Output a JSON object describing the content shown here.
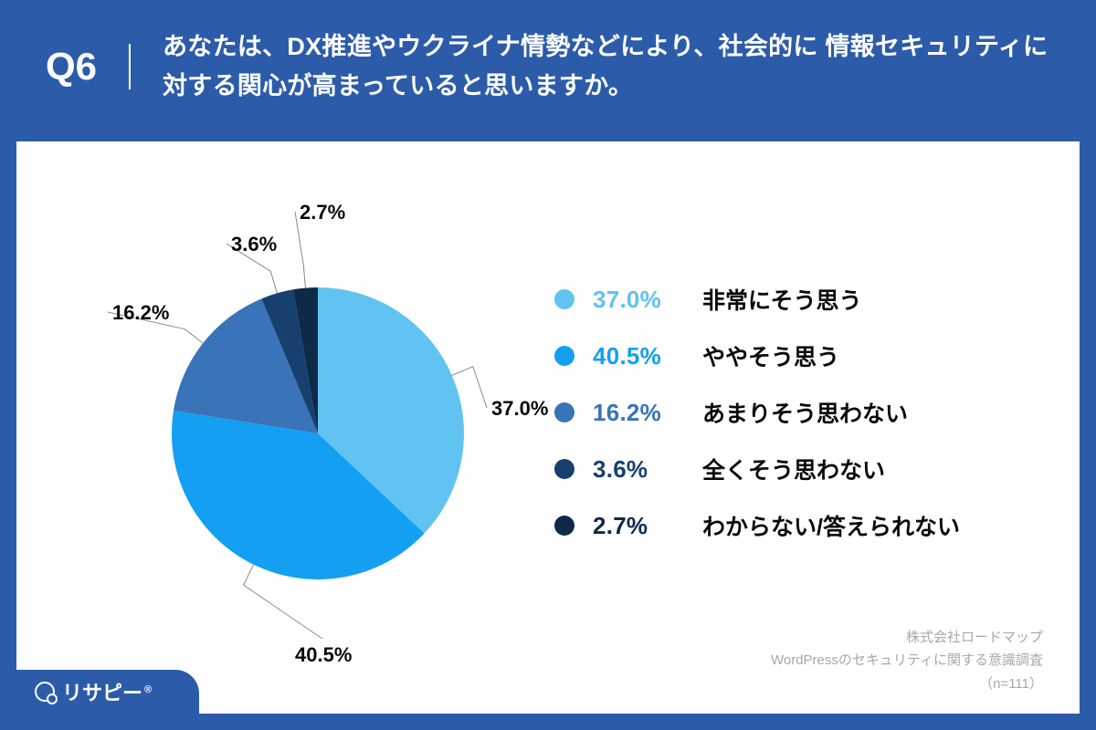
{
  "header": {
    "question_number": "Q6",
    "question_text": "あなたは、DX推進やウクライナ情勢などにより、社会的に\n情報セキュリティに対する関心が高まっていると思いますか。",
    "bg_color": "#2c5ca9",
    "text_color": "#ffffff",
    "qnum_fontsize": 42,
    "qtext_fontsize": 27
  },
  "chart": {
    "type": "pie",
    "background_color": "#ffffff",
    "slices": [
      {
        "label": "非常にそう思う",
        "value": 37.0,
        "pct_text": "37.0%",
        "color": "#61c3f2",
        "pct_color": "#61c3f2"
      },
      {
        "label": "ややそう思う",
        "value": 40.5,
        "pct_text": "40.5%",
        "color": "#149ff2",
        "pct_color": "#149ff2"
      },
      {
        "label": "あまりそう思わない",
        "value": 16.2,
        "pct_text": "16.2%",
        "color": "#3973b8",
        "pct_color": "#3973b8"
      },
      {
        "label": "全くそう思わない",
        "value": 3.6,
        "pct_text": "3.6%",
        "color": "#17406e",
        "pct_color": "#17406e"
      },
      {
        "label": "わからない/答えられない",
        "value": 2.7,
        "pct_text": "2.7%",
        "color": "#0f2a49",
        "pct_color": "#0f2a49"
      }
    ],
    "callout_fontsize": 22,
    "callout_color": "#0a0a0a",
    "callout_line_color": "#888888"
  },
  "legend": {
    "dot_size": 22,
    "pct_fontsize": 26,
    "label_fontsize": 25,
    "label_color": "#0a0a0a"
  },
  "credits": {
    "line1": "株式会社ロードマップ",
    "line2": "WordPressのセキュリティに関する意識調査",
    "line3": "（n=111）",
    "color": "#a8a8a8",
    "fontsize": 15
  },
  "brand": {
    "name": "リサピー",
    "reg_mark": "®",
    "bg_color": "#2c5ca9",
    "text_color": "#ffffff"
  }
}
